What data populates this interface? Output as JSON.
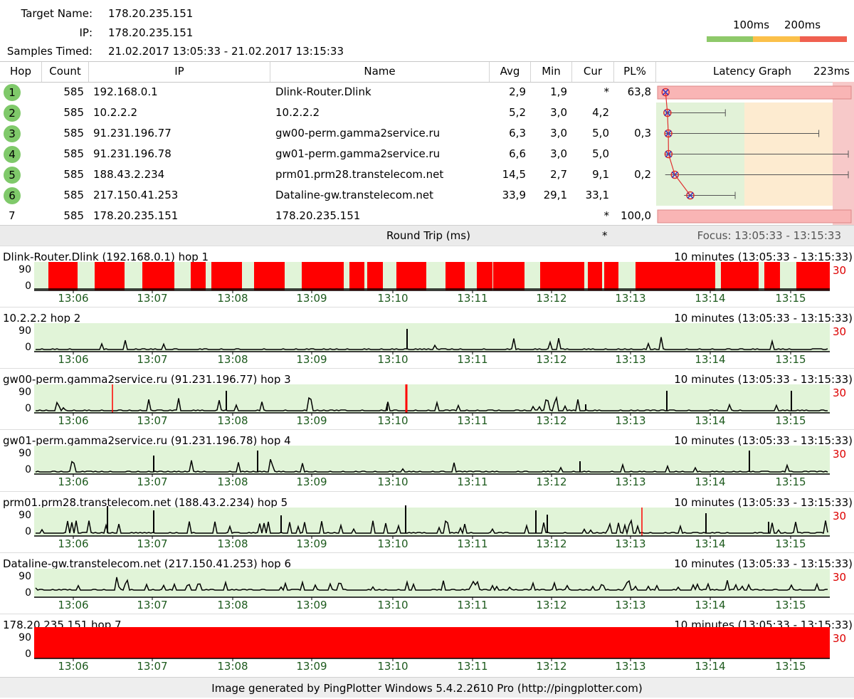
{
  "summary": {
    "target_label": "Target Name:",
    "target_value": "178.20.235.151",
    "ip_label": "IP:",
    "ip_value": "178.20.235.151",
    "samples_label": "Samples Timed:",
    "samples_value": "21.02.2017 13:05:33 - 21.02.2017 13:15:33"
  },
  "legend": {
    "label_100": "100ms",
    "label_200": "200ms",
    "colors": {
      "good": "#8ec96a",
      "warn": "#fbc04a",
      "bad": "#f06050"
    }
  },
  "table": {
    "headers": {
      "hop": "Hop",
      "count": "Count",
      "ip": "IP",
      "name": "Name",
      "avg": "Avg",
      "min": "Min",
      "cur": "Cur",
      "pl": "PL%",
      "graph": "Latency Graph",
      "graph_scale": "223ms"
    },
    "rows": [
      {
        "hop": "1",
        "count": "585",
        "ip": "192.168.0.1",
        "name": "Dlink-Router.Dlink",
        "avg": "2,9",
        "min": "1,9",
        "cur": "*",
        "pl": "63,8",
        "badge": true
      },
      {
        "hop": "2",
        "count": "585",
        "ip": "10.2.2.2",
        "name": "10.2.2.2",
        "avg": "5,2",
        "min": "3,0",
        "cur": "4,2",
        "pl": "",
        "badge": true
      },
      {
        "hop": "3",
        "count": "585",
        "ip": "91.231.196.77",
        "name": "gw00-perm.gamma2service.ru",
        "avg": "6,3",
        "min": "3,0",
        "cur": "5,0",
        "pl": "0,3",
        "badge": true
      },
      {
        "hop": "4",
        "count": "585",
        "ip": "91.231.196.78",
        "name": "gw01-perm.gamma2service.ru",
        "avg": "6,6",
        "min": "3,0",
        "cur": "5,0",
        "pl": "",
        "badge": true
      },
      {
        "hop": "5",
        "count": "585",
        "ip": "188.43.2.234",
        "name": "prm01.prm28.transtelecom.net",
        "avg": "14,5",
        "min": "2,7",
        "cur": "9,1",
        "pl": "0,2",
        "badge": true
      },
      {
        "hop": "6",
        "count": "585",
        "ip": "217.150.41.253",
        "name": "Dataline-gw.transtelecom.net",
        "avg": "33,9",
        "min": "29,1",
        "cur": "33,1",
        "pl": "",
        "badge": true
      },
      {
        "hop": "7",
        "count": "585",
        "ip": "178.20.235.151",
        "name": "178.20.235.151",
        "avg": "",
        "min": "",
        "cur": "*",
        "pl": "100,0",
        "badge": false
      }
    ],
    "latency_graph": {
      "scale_max_ms": 223,
      "rows": [
        {
          "avg": 2.9,
          "min": 1.9,
          "max": null,
          "loss": true
        },
        {
          "avg": 5.2,
          "min": 3.0,
          "max": 95
        },
        {
          "avg": 6.3,
          "min": 3.0,
          "max": 238
        },
        {
          "avg": 6.6,
          "min": 3.0,
          "max": 303
        },
        {
          "avg": 14.5,
          "min": 2.7,
          "max": 300
        },
        {
          "avg": 33.9,
          "min": 29.1,
          "max": 110
        },
        {
          "avg": null,
          "min": null,
          "max": null,
          "loss": true
        }
      ]
    }
  },
  "roundtrip": {
    "label": "Round Trip (ms)",
    "cur": "*",
    "focus": "Focus: 13:05:33 - 13:15:33"
  },
  "timelines": {
    "ytop": "90",
    "ybottom": "0",
    "scale": "30",
    "ticks": [
      "13:06",
      "13:07",
      "13:08",
      "13:09",
      "13:10",
      "13:11",
      "13:12",
      "13:13",
      "13:14",
      "13:15"
    ],
    "panels": [
      {
        "title": "Dlink-Router.Dlink (192.168.0.1) hop 1",
        "range": "10 minutes (13:05:33 - 13:15:33)"
      },
      {
        "title": "10.2.2.2 hop 2",
        "range": "10 minutes (13:05:33 - 13:15:33)"
      },
      {
        "title": "gw00-perm.gamma2service.ru (91.231.196.77) hop 3",
        "range": "10 minutes (13:05:33 - 13:15:33)"
      },
      {
        "title": "gw01-perm.gamma2service.ru (91.231.196.78) hop 4",
        "range": "10 minutes (13:05:33 - 13:15:33)"
      },
      {
        "title": "prm01.prm28.transtelecom.net (188.43.2.234) hop 5",
        "range": "10 minutes (13:05:33 - 13:15:33)"
      },
      {
        "title": "Dataline-gw.transtelecom.net (217.150.41.253) hop 6",
        "range": "10 minutes (13:05:33 - 13:15:33)"
      },
      {
        "title": "178.20.235.151 hop 7",
        "range": "10 minutes (13:05:33 - 13:15:33)"
      }
    ]
  },
  "footer": "Image generated by PingPlotter Windows 5.4.2.2610 Pro (http://pingplotter.com)"
}
